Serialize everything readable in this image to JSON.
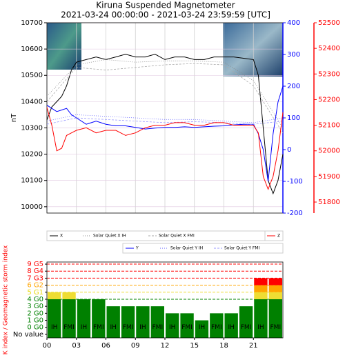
{
  "chart_data": [
    {
      "type": "line",
      "title": "Kiruna Suspended Magnetometer",
      "subtitle": "2021-03-24 00:00:00 - 2021-03-24 23:59:59 [UTC]",
      "ylabel": "nT",
      "xlim": [
        0,
        24
      ],
      "xticks": [
        0,
        3,
        6,
        9,
        12,
        15,
        18,
        21,
        24
      ],
      "ylim": [
        9976,
        10700
      ],
      "yticks": [
        10000,
        10100,
        10200,
        10300,
        10400,
        10500,
        10600,
        10700
      ],
      "y2lim": [
        -200,
        400
      ],
      "y2ticks": [
        -200,
        -100,
        0,
        100,
        200,
        300,
        400
      ],
      "y2color": "#0000ff",
      "y3lim": [
        51757,
        52500
      ],
      "y3ticks": [
        51800,
        51900,
        52000,
        52100,
        52200,
        52300,
        52400,
        52500
      ],
      "y3color": "#ff0000",
      "grid": true,
      "series": [
        {
          "name": "X",
          "color": "#000000",
          "axis": "y",
          "dash": "none",
          "x": [
            0,
            0.5,
            1,
            1.5,
            2,
            2.5,
            3,
            4,
            5,
            6,
            7,
            8,
            9,
            10,
            11,
            12,
            13,
            14,
            15,
            16,
            17,
            18,
            19,
            20,
            21,
            21.5,
            22,
            22.5,
            23,
            23.5,
            24
          ],
          "values": [
            10330,
            10380,
            10400,
            10420,
            10460,
            10520,
            10550,
            10560,
            10570,
            10560,
            10570,
            10580,
            10570,
            10570,
            10580,
            10560,
            10570,
            10570,
            10560,
            10560,
            10570,
            10570,
            10570,
            10565,
            10560,
            10500,
            10300,
            10100,
            10050,
            10100,
            10200
          ]
        },
        {
          "name": "Solar Quiet X IH",
          "color": "#888888",
          "axis": "y",
          "dash": "1 2",
          "x": [
            0,
            3,
            6,
            9,
            12,
            15,
            18,
            21,
            24
          ],
          "values": [
            10420,
            10540,
            10560,
            10550,
            10555,
            10555,
            10550,
            10480,
            10300
          ]
        },
        {
          "name": "Solar Quiet X FMI",
          "color": "#aaaaaa",
          "axis": "y",
          "dash": "3 2",
          "x": [
            0,
            3,
            6,
            9,
            12,
            15,
            18,
            21,
            24
          ],
          "values": [
            10400,
            10530,
            10520,
            10530,
            10540,
            10545,
            10540,
            10460,
            10280
          ]
        },
        {
          "name": "Y",
          "color": "#0000ff",
          "axis": "y2",
          "dash": "none",
          "x": [
            0,
            0.5,
            1,
            1.5,
            2,
            2.5,
            3,
            4,
            5,
            6,
            7,
            8,
            9,
            10,
            11,
            12,
            13,
            14,
            15,
            16,
            17,
            18,
            19,
            20,
            21,
            21.5,
            22,
            22.5,
            23,
            23.5,
            24
          ],
          "values": [
            140,
            130,
            120,
            125,
            130,
            110,
            100,
            80,
            90,
            80,
            75,
            75,
            70,
            65,
            68,
            70,
            70,
            72,
            70,
            72,
            74,
            75,
            78,
            80,
            80,
            50,
            0,
            -100,
            50,
            150,
            200
          ]
        },
        {
          "name": "Solar Quiet Y IH",
          "color": "#6666ff",
          "axis": "y2",
          "dash": "1 2",
          "x": [
            0,
            3,
            6,
            9,
            12,
            15,
            18,
            21,
            24
          ],
          "values": [
            90,
            110,
            105,
            100,
            95,
            95,
            90,
            85,
            100
          ]
        },
        {
          "name": "Solar Quiet Y FMI",
          "color": "#9999ff",
          "axis": "y2",
          "dash": "3 2",
          "x": [
            0,
            3,
            6,
            9,
            12,
            15,
            18,
            21,
            24
          ],
          "values": [
            80,
            100,
            95,
            90,
            85,
            88,
            85,
            80,
            90
          ]
        },
        {
          "name": "Z",
          "color": "#ff0000",
          "axis": "y3",
          "dash": "none",
          "x": [
            0,
            0.5,
            1,
            1.5,
            2,
            2.5,
            3,
            4,
            5,
            6,
            7,
            8,
            9,
            10,
            11,
            12,
            13,
            14,
            15,
            16,
            17,
            18,
            19,
            20,
            21,
            21.5,
            22,
            22.5,
            23,
            23.5,
            24
          ],
          "values": [
            52170,
            52100,
            52000,
            52010,
            52060,
            52070,
            52080,
            52090,
            52070,
            52080,
            52080,
            52060,
            52070,
            52090,
            52100,
            52100,
            52110,
            52110,
            52100,
            52100,
            52110,
            52110,
            52100,
            52100,
            52100,
            52070,
            51900,
            51850,
            51900,
            52000,
            52150
          ]
        }
      ]
    },
    {
      "type": "bar",
      "ylabel": "K index / Geomagnetic storm index",
      "xlim": [
        0,
        24
      ],
      "xticks": [
        {
          "value": 0,
          "label": "00"
        },
        {
          "value": 3,
          "label": "03"
        },
        {
          "value": 6,
          "label": "06"
        },
        {
          "value": 9,
          "label": "09"
        },
        12,
        15,
        18,
        21
      ],
      "ylim": [
        -1.5,
        9.3
      ],
      "yticks": [
        {
          "value": 9,
          "label": "9 G5"
        },
        {
          "value": 8,
          "label": "8 G4"
        },
        {
          "value": 7,
          "label": "7 G3"
        },
        {
          "value": 6,
          "label": "6 G2"
        },
        {
          "value": 5,
          "label": "5 G1"
        },
        {
          "value": 4,
          "label": "4 G0"
        },
        {
          "value": 3,
          "label": "3 G0"
        },
        {
          "value": 2,
          "label": "2 G0"
        },
        {
          "value": 1,
          "label": "1 G0"
        },
        {
          "value": 0,
          "label": "0 G0"
        },
        {
          "value": -1,
          "label": "No value"
        }
      ],
      "ytick_colors": [
        "#ff0000",
        "#ff0000",
        "#ff0000",
        "#ffa500",
        "#e6d600",
        "#008000",
        "#008000",
        "#008000",
        "#008000",
        "#008000",
        "#000000"
      ],
      "levels": [
        {
          "value": 4,
          "color": "#008000"
        },
        {
          "value": 5,
          "color": "#eedd33"
        },
        {
          "value": 6,
          "color": "#ffa500"
        },
        {
          "value": 7,
          "color": "#ff0000"
        },
        {
          "value": 8,
          "color": "#ff0000"
        },
        {
          "value": 9,
          "color": "#ff0000"
        }
      ],
      "x": [
        0,
        1.5,
        3,
        4.5,
        6,
        7.5,
        9,
        10.5,
        12,
        13.5,
        15,
        16.5,
        18,
        19.5,
        21,
        22.5
      ],
      "labels": [
        "IH",
        "FMI",
        "IH",
        "FMI",
        "IH",
        "FMI",
        "IH",
        "FMI",
        "IH",
        "FMI",
        "IH",
        "FMI",
        "IH",
        "FMI",
        "IH",
        "FMI"
      ],
      "values": [
        5,
        5,
        4,
        4,
        3,
        3,
        3,
        3,
        2,
        2,
        1,
        2,
        2,
        3,
        7,
        7
      ]
    }
  ]
}
